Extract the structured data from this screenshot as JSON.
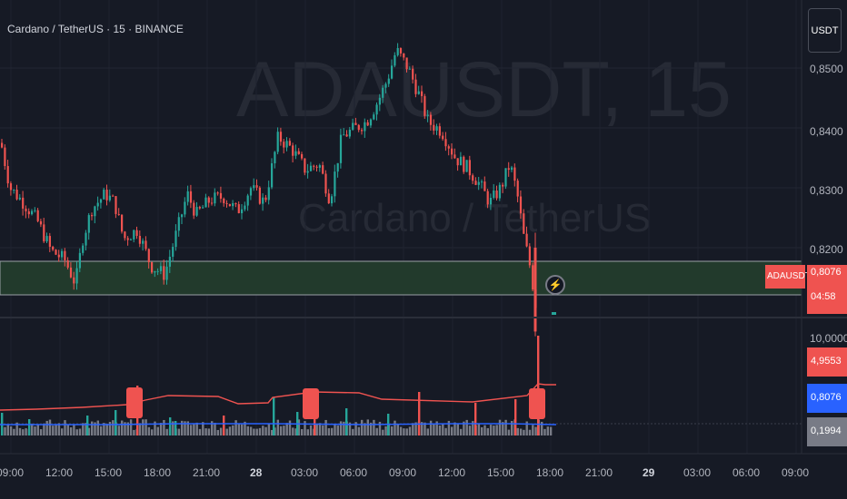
{
  "header": {
    "symbol_title": "Cardano / TetherUS · 15 · BINANCE",
    "unit_button": "USDT"
  },
  "watermark": {
    "ticker": "ADAUSDT, 15",
    "name": "Cardano / TetherUS"
  },
  "price_axis": {
    "labels": [
      "0,8500",
      "0,8400",
      "0,8300",
      "0,8200"
    ],
    "ticker_tag": "ADAUSDT",
    "last_price": "0,8076",
    "countdown": "04:58"
  },
  "indicator_axis": {
    "top_label": "10,0000",
    "values": [
      "4,9553",
      "0,8076",
      "0,1994"
    ]
  },
  "time_axis": {
    "labels": [
      "09:00",
      "12:00",
      "15:00",
      "18:00",
      "21:00",
      "28",
      "03:00",
      "06:00",
      "09:00",
      "12:00",
      "15:00",
      "18:00",
      "21:00",
      "29",
      "03:00",
      "06:00",
      "09:00"
    ]
  },
  "colors": {
    "background": "#161a25",
    "up": "#26a69a",
    "down": "#ef5350",
    "zone": "#223a2c",
    "blue_line": "#2962ff"
  },
  "chart_data": {
    "type": "candlestick",
    "symbol": "ADAUSDT",
    "interval": "15",
    "exchange": "BINANCE",
    "last_price": 0.8076,
    "price_axis_ticks": [
      0.85,
      0.84,
      0.83,
      0.82
    ],
    "zone_price_range": [
      0.8055,
      0.811
    ],
    "close_path": [
      [
        0,
        0.8375
      ],
      [
        10,
        0.83
      ],
      [
        25,
        0.8275
      ],
      [
        40,
        0.8245
      ],
      [
        55,
        0.8195
      ],
      [
        70,
        0.818
      ],
      [
        82,
        0.814
      ],
      [
        90,
        0.8215
      ],
      [
        100,
        0.8265
      ],
      [
        115,
        0.829
      ],
      [
        125,
        0.8275
      ],
      [
        135,
        0.8215
      ],
      [
        150,
        0.823
      ],
      [
        165,
        0.817
      ],
      [
        180,
        0.8155
      ],
      [
        195,
        0.8235
      ],
      [
        205,
        0.829
      ],
      [
        215,
        0.8255
      ],
      [
        230,
        0.828
      ],
      [
        245,
        0.8285
      ],
      [
        260,
        0.826
      ],
      [
        275,
        0.83
      ],
      [
        290,
        0.8275
      ],
      [
        305,
        0.8385
      ],
      [
        320,
        0.8365
      ],
      [
        335,
        0.833
      ],
      [
        350,
        0.834
      ],
      [
        362,
        0.828
      ],
      [
        375,
        0.8385
      ],
      [
        390,
        0.84
      ],
      [
        402,
        0.841
      ],
      [
        415,
        0.8445
      ],
      [
        425,
        0.848
      ],
      [
        435,
        0.853
      ],
      [
        448,
        0.85
      ],
      [
        460,
        0.8455
      ],
      [
        470,
        0.841
      ],
      [
        485,
        0.8395
      ],
      [
        500,
        0.835
      ],
      [
        512,
        0.8335
      ],
      [
        525,
        0.831
      ],
      [
        538,
        0.8275
      ],
      [
        550,
        0.83
      ],
      [
        560,
        0.834
      ],
      [
        568,
        0.829
      ],
      [
        575,
        0.822
      ],
      [
        582,
        0.817
      ],
      [
        590,
        0.809
      ]
    ],
    "indicator": {
      "axis_max": 10.0,
      "red_line_last": 4.9553,
      "blue_line_last": 0.8076,
      "gray_volume_last": 0.1994
    }
  }
}
